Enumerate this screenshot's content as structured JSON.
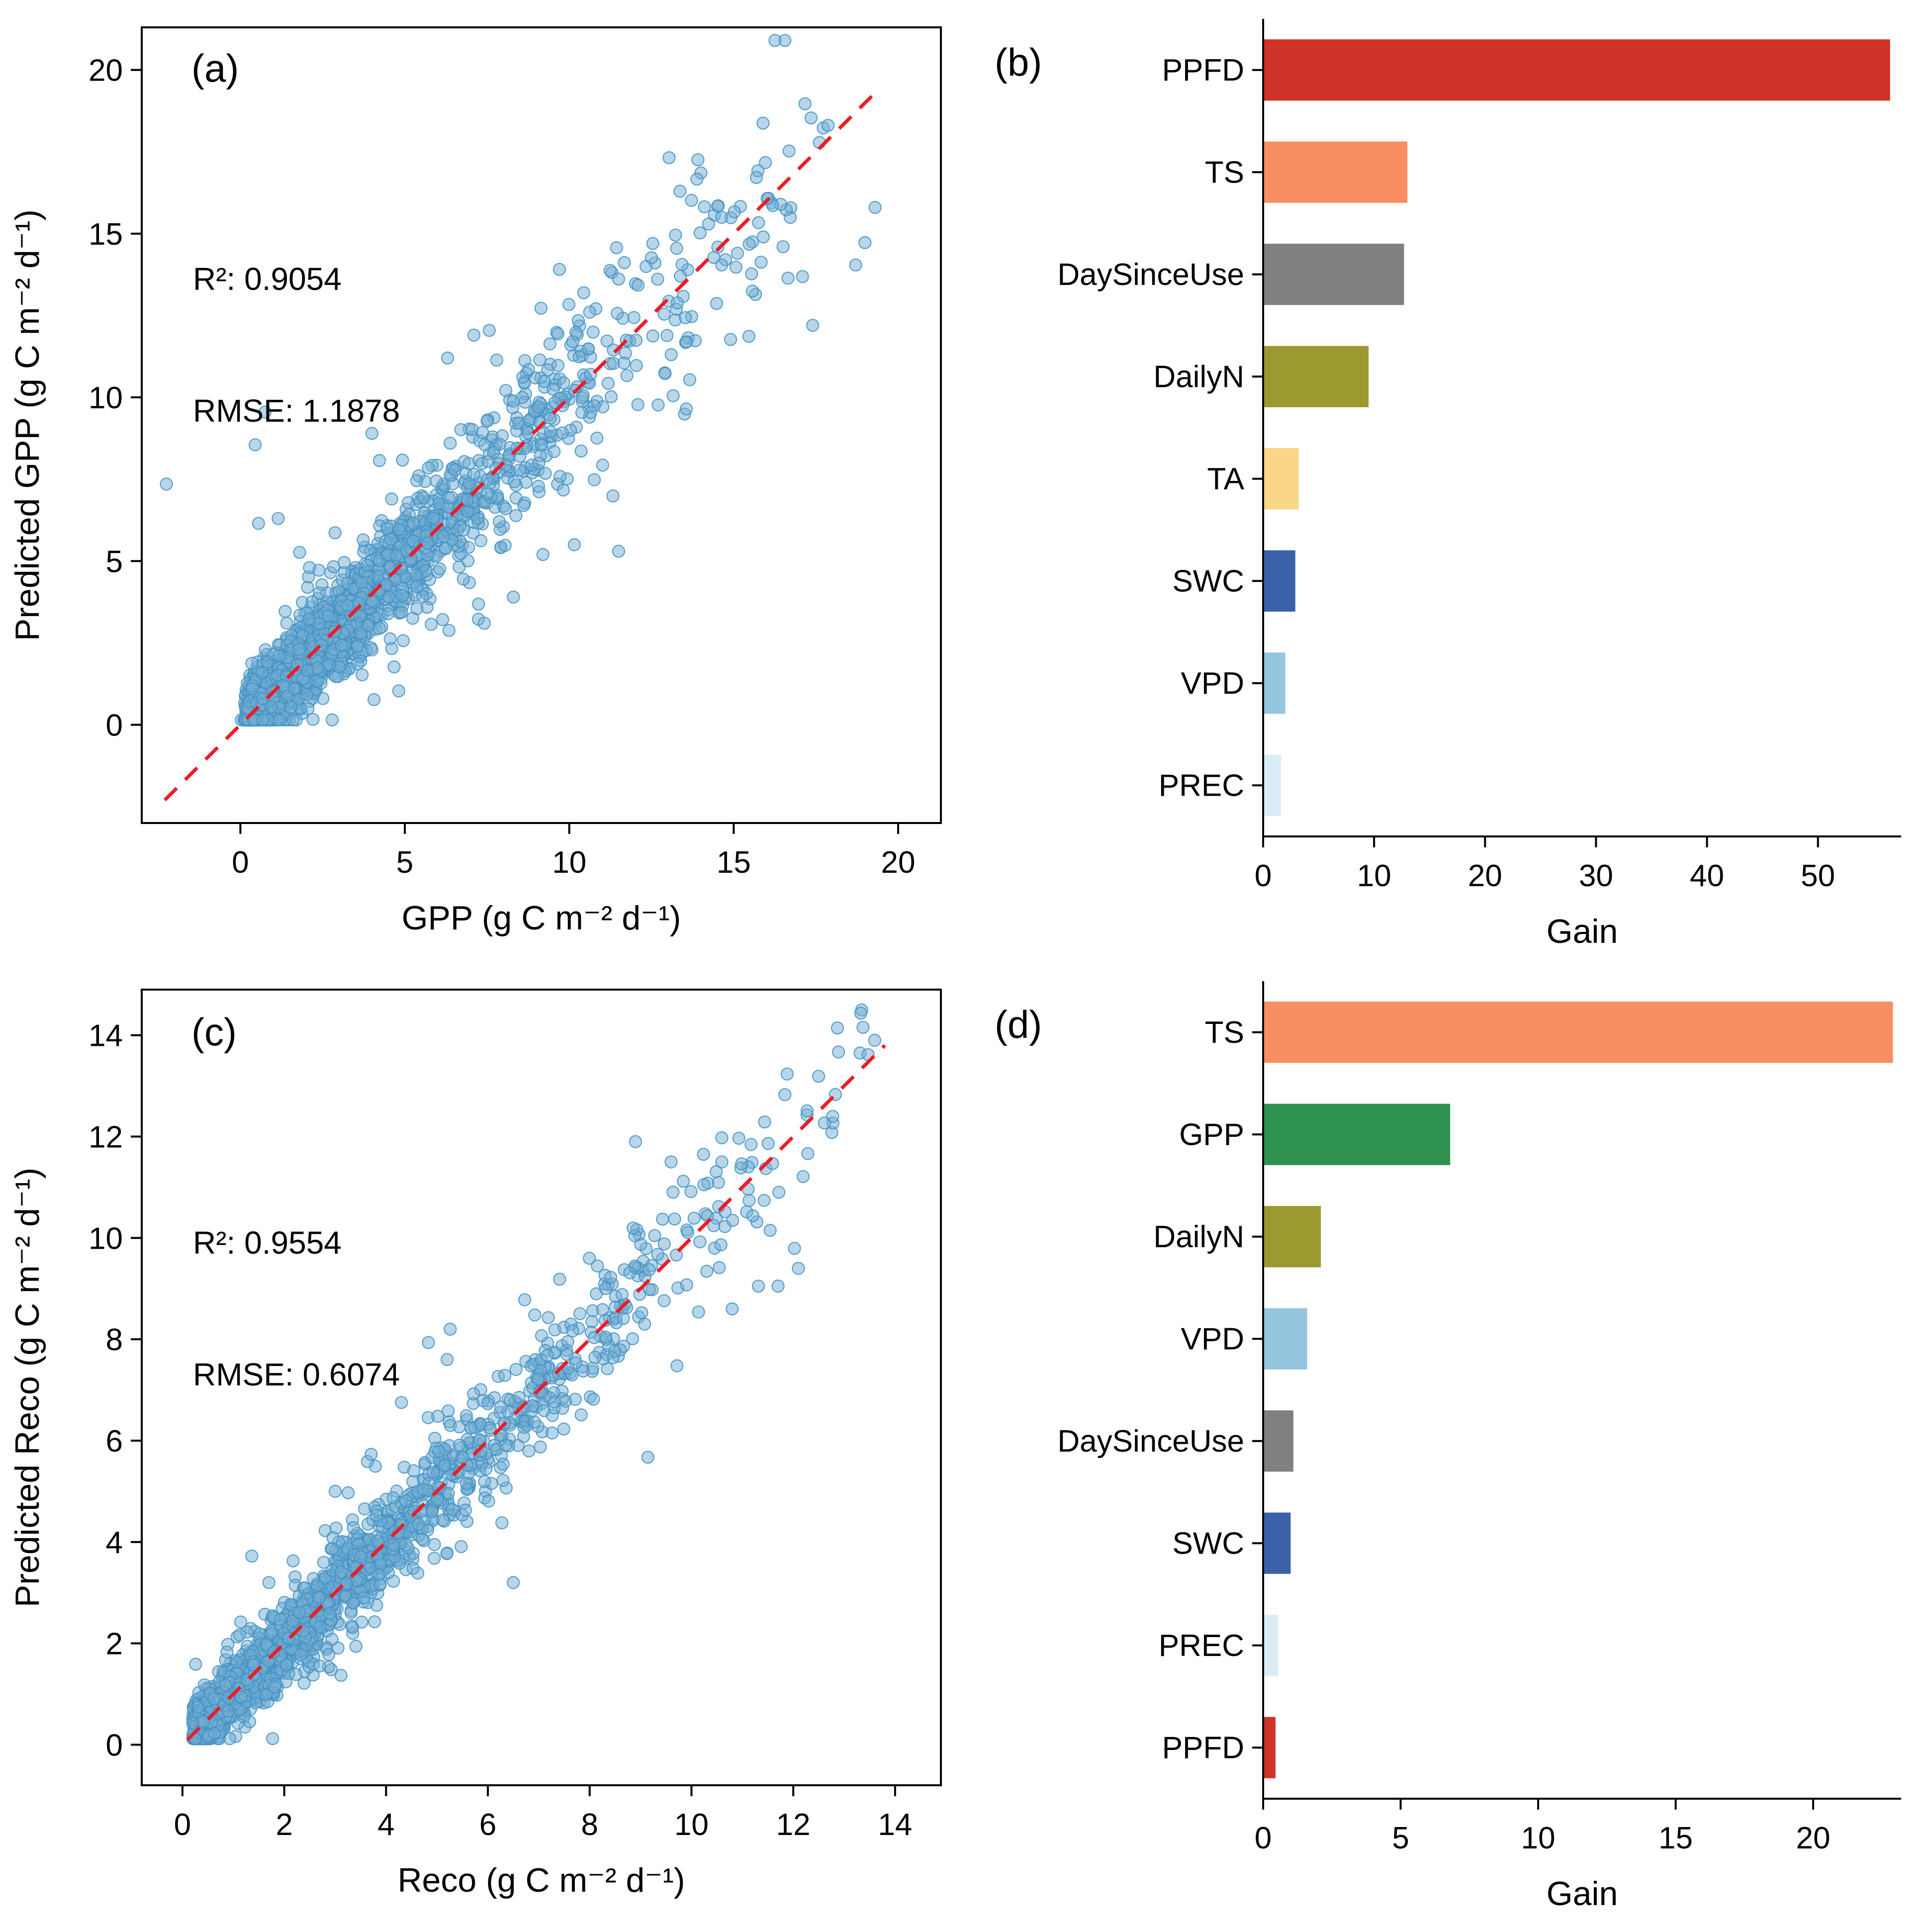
{
  "figure": {
    "background": "#ffffff"
  },
  "chart_data": [
    {
      "id": "a",
      "type": "scatter",
      "panel_label": "(a)",
      "xlabel": "GPP (g C m⁻² d⁻¹)",
      "ylabel": "Predicted GPP (g C m⁻² d⁻¹)",
      "xlim": [
        -3.0,
        21.3
      ],
      "ylim": [
        -3.0,
        21.3
      ],
      "xticks": [
        0,
        5,
        10,
        15,
        20
      ],
      "yticks": [
        0,
        5,
        10,
        15,
        20
      ],
      "grid": false,
      "annotations": {
        "r2": "R²: 0.9054",
        "rmse": "RMSE: 1.1878"
      },
      "identity_line": {
        "x0": -2.3,
        "y0": -2.3,
        "x1": 19.2,
        "y1": 19.2,
        "color": "#ed1c24",
        "style": "dashed"
      },
      "points": {
        "n": 1900,
        "seed": 11,
        "distribution": "exponential",
        "x_scale": 4.0,
        "x_offset": 0.1,
        "x_max": 19.4,
        "noise_base": 0.5,
        "noise_slope": 0.085,
        "y_min": 0.15,
        "color": "#74add1",
        "edge_color": "#4292c6",
        "opacity": 0.5,
        "radius": 12
      },
      "outlier_points": [
        [
          -2.25,
          7.35
        ],
        [
          0.45,
          8.55
        ],
        [
          0.75,
          9.55
        ],
        [
          0.55,
          6.15
        ],
        [
          1.15,
          6.3
        ],
        [
          19.3,
          15.8
        ],
        [
          17.4,
          12.2
        ],
        [
          16.5,
          14.6
        ],
        [
          15.9,
          14.9
        ],
        [
          6.3,
          11.2
        ],
        [
          7.1,
          11.9
        ],
        [
          4.0,
          8.9
        ],
        [
          8.3,
          3.9
        ],
        [
          9.2,
          5.2
        ],
        [
          11.5,
          5.3
        ],
        [
          2.1,
          4.8
        ]
      ]
    },
    {
      "id": "b",
      "type": "bar",
      "orientation": "horizontal",
      "panel_label": "(b)",
      "xlabel": "Gain",
      "ylabel": "",
      "categories": [
        "PPFD",
        "TS",
        "DaySinceUse",
        "DailyN",
        "TA",
        "SWC",
        "VPD",
        "PREC"
      ],
      "values": [
        56.5,
        13.0,
        12.7,
        9.5,
        3.2,
        2.9,
        2.0,
        1.6
      ],
      "colors": [
        "#cf3227",
        "#f98e62",
        "#808080",
        "#9a9a30",
        "#fbd687",
        "#3b62a8",
        "#94c6df",
        "#daedf7"
      ],
      "xlim": [
        0,
        57.5
      ],
      "xticks": [
        0,
        10,
        20,
        30,
        40,
        50
      ],
      "grid": false,
      "legend": "none"
    },
    {
      "id": "c",
      "type": "scatter",
      "panel_label": "(c)",
      "xlabel": "Reco (g C m⁻² d⁻¹)",
      "ylabel": "Predicted Reco (g C m⁻² d⁻¹)",
      "xlim": [
        -0.8,
        14.9
      ],
      "ylim": [
        -0.8,
        14.9
      ],
      "xticks": [
        0,
        2,
        4,
        6,
        8,
        10,
        12,
        14
      ],
      "yticks": [
        0,
        2,
        4,
        6,
        8,
        10,
        12,
        14
      ],
      "grid": false,
      "annotations": {
        "r2": "R²: 0.9554",
        "rmse": "RMSE: 0.6074"
      },
      "identity_line": {
        "x0": 0.1,
        "y0": 0.1,
        "x1": 13.8,
        "y1": 13.8,
        "color": "#ed1c24",
        "style": "dashed"
      },
      "points": {
        "n": 1900,
        "seed": 23,
        "distribution": "exponential",
        "x_scale": 3.1,
        "x_offset": 0.2,
        "x_max": 13.8,
        "noise_base": 0.28,
        "noise_slope": 0.05,
        "y_min": 0.12,
        "color": "#74add1",
        "edge_color": "#4292c6",
        "opacity": 0.5,
        "radius": 12
      },
      "outlier_points": [
        [
          6.5,
          3.2
        ],
        [
          8.9,
          11.9
        ],
        [
          11.7,
          9.05
        ],
        [
          13.6,
          13.9
        ],
        [
          12.1,
          9.4
        ],
        [
          5.2,
          7.6
        ],
        [
          9.6,
          11.5
        ],
        [
          10.8,
          8.6
        ],
        [
          3.0,
          5.0
        ]
      ]
    },
    {
      "id": "d",
      "type": "bar",
      "orientation": "horizontal",
      "panel_label": "(d)",
      "xlabel": "Gain",
      "ylabel": "",
      "categories": [
        "TS",
        "GPP",
        "DailyN",
        "VPD",
        "DaySinceUse",
        "SWC",
        "PREC",
        "PPFD"
      ],
      "values": [
        22.9,
        6.8,
        2.1,
        1.6,
        1.1,
        1.0,
        0.55,
        0.45
      ],
      "colors": [
        "#f98e62",
        "#2e9150",
        "#9a9a30",
        "#94c6df",
        "#808080",
        "#3b62a8",
        "#daedf7",
        "#cf3227"
      ],
      "xlim": [
        0,
        23.2
      ],
      "xticks": [
        0,
        5,
        10,
        15,
        20
      ],
      "grid": false,
      "legend": "none"
    }
  ]
}
